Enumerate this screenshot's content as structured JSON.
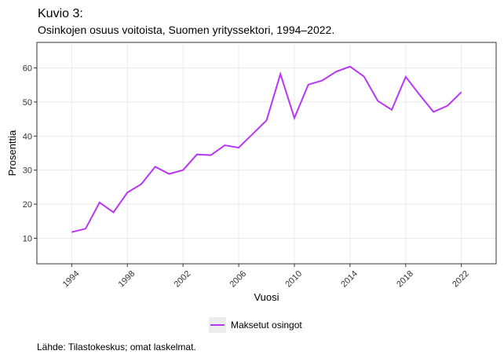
{
  "figure": {
    "label": "Kuvio 3:",
    "title": "Osinkojen osuus voitoista, Suomen yrityssektori, 1994–2022.",
    "source": "Lähde: Tilastokeskus; omat laskelmat."
  },
  "colors": {
    "series": "#b736f5",
    "grid": "#e6e6e6",
    "axis": "#333333",
    "legend_bg": "#ececec"
  },
  "chart_data": {
    "type": "line",
    "title": "",
    "xlabel": "Vuosi",
    "ylabel": "Prosenttia",
    "xlim": [
      1991.5,
      2024.5
    ],
    "ylim": [
      2.5,
      67.5
    ],
    "grid": true,
    "legend_position": "bottom",
    "x_ticks": [
      "1994",
      "1998",
      "2002",
      "2006",
      "2010",
      "2014",
      "2018",
      "2022"
    ],
    "y_ticks": [
      "10",
      "20",
      "30",
      "40",
      "50",
      "60"
    ],
    "x": [
      1994,
      1995,
      1996,
      1997,
      1998,
      1999,
      2000,
      2001,
      2002,
      2003,
      2004,
      2005,
      2006,
      2007,
      2008,
      2009,
      2010,
      2011,
      2012,
      2013,
      2014,
      2015,
      2016,
      2017,
      2018,
      2019,
      2020,
      2021,
      2022
    ],
    "series": [
      {
        "name": "Maksetut osingot",
        "values": [
          11.8,
          12.8,
          20.5,
          17.6,
          23.4,
          25.9,
          31.0,
          28.9,
          30.0,
          34.6,
          34.4,
          37.3,
          36.6,
          40.6,
          44.6,
          58.2,
          45.3,
          55.1,
          56.3,
          58.9,
          60.4,
          57.5,
          50.3,
          47.7,
          57.4,
          52.1,
          47.1,
          48.9,
          52.9
        ]
      }
    ]
  }
}
